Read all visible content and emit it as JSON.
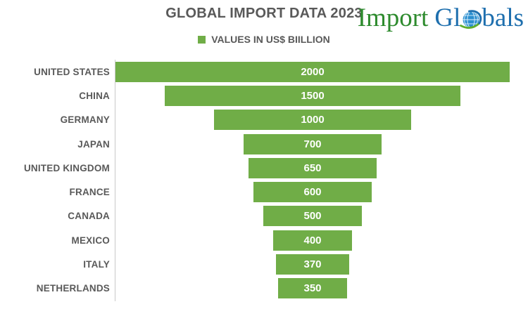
{
  "header": {
    "title": "GLOBAL IMPORT DATA 2023",
    "legend_label": "VALUES IN US$ BIILLION"
  },
  "logo": {
    "text_green": "Import",
    "text_blue_left": "Gl",
    "text_blue_right": "bals",
    "globe_icon": "globe-with-green-swoosh",
    "color_green": "#2e8b2e",
    "color_blue": "#1e6fae"
  },
  "chart_data": {
    "type": "bar",
    "variant": "centered-funnel-horizontal",
    "title": "GLOBAL IMPORT DATA 2023",
    "legend": [
      "VALUES IN US$ BIILLION"
    ],
    "legend_position": "top",
    "categories": [
      "UNITED STATES",
      "CHINA",
      "GERMANY",
      "JAPAN",
      "UNITED KINGDOM",
      "FRANCE",
      "CANADA",
      "MEXICO",
      "ITALY",
      "NETHERLANDS"
    ],
    "values": [
      2000,
      1500,
      1000,
      700,
      650,
      600,
      500,
      400,
      370,
      350
    ],
    "xlabel": "",
    "ylabel": "",
    "xlim": [
      0,
      2000
    ],
    "grid": false,
    "bar_color": "#70AD47",
    "value_label_color": "#FFFFFF",
    "axis_line_color": "#C9C9C9",
    "label_color": "#595959"
  }
}
